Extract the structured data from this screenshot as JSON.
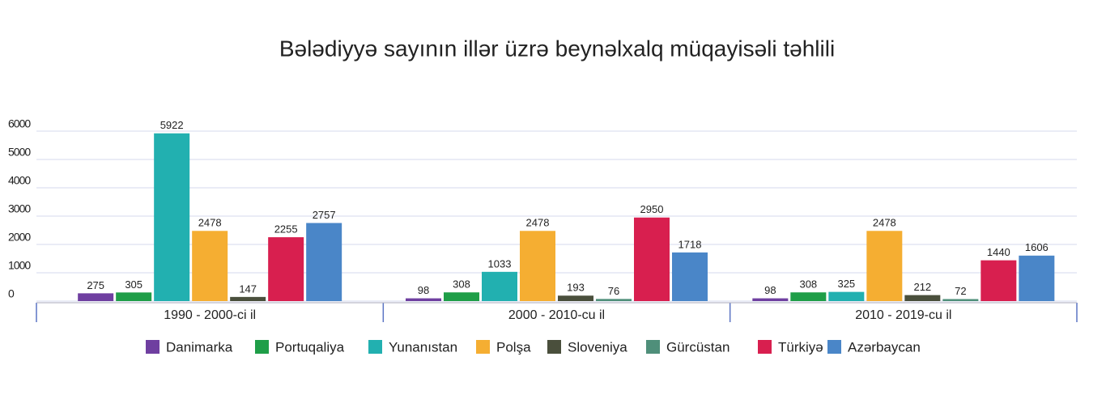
{
  "chart_data": {
    "type": "bar",
    "title": "Bələdiyyə sayının illər üzrə beynəlxalq müqayisəli təhlili",
    "categories": [
      "1990 - 2000-ci il",
      "2000 - 2010-cu il",
      "2010 - 2019-cu il"
    ],
    "series": [
      {
        "name": "Danimarka",
        "color": "#6f3fa0",
        "values": [
          275,
          98,
          98
        ]
      },
      {
        "name": "Portuqaliya",
        "color": "#1f9e48",
        "values": [
          305,
          308,
          308
        ]
      },
      {
        "name": "Yunanıstan",
        "color": "#22b0b0",
        "values": [
          5922,
          1033,
          325
        ]
      },
      {
        "name": "Polşa",
        "color": "#f5ae32",
        "values": [
          2478,
          2478,
          2478
        ]
      },
      {
        "name": "Sloveniya",
        "color": "#4a4f3c",
        "values": [
          147,
          193,
          212
        ]
      },
      {
        "name": "Gürcüstan",
        "color": "#4f8f7a",
        "values": [
          null,
          76,
          72
        ]
      },
      {
        "name": "Türkiyə",
        "color": "#d81f4f",
        "values": [
          2255,
          2950,
          1440
        ]
      },
      {
        "name": "Azərbaycan",
        "color": "#4a86c8",
        "values": [
          2757,
          1718,
          1606
        ]
      }
    ],
    "ylim": [
      0,
      6000
    ],
    "yticks": [
      0,
      1000,
      2000,
      3000,
      4000,
      5000,
      6000
    ],
    "grid": true
  }
}
